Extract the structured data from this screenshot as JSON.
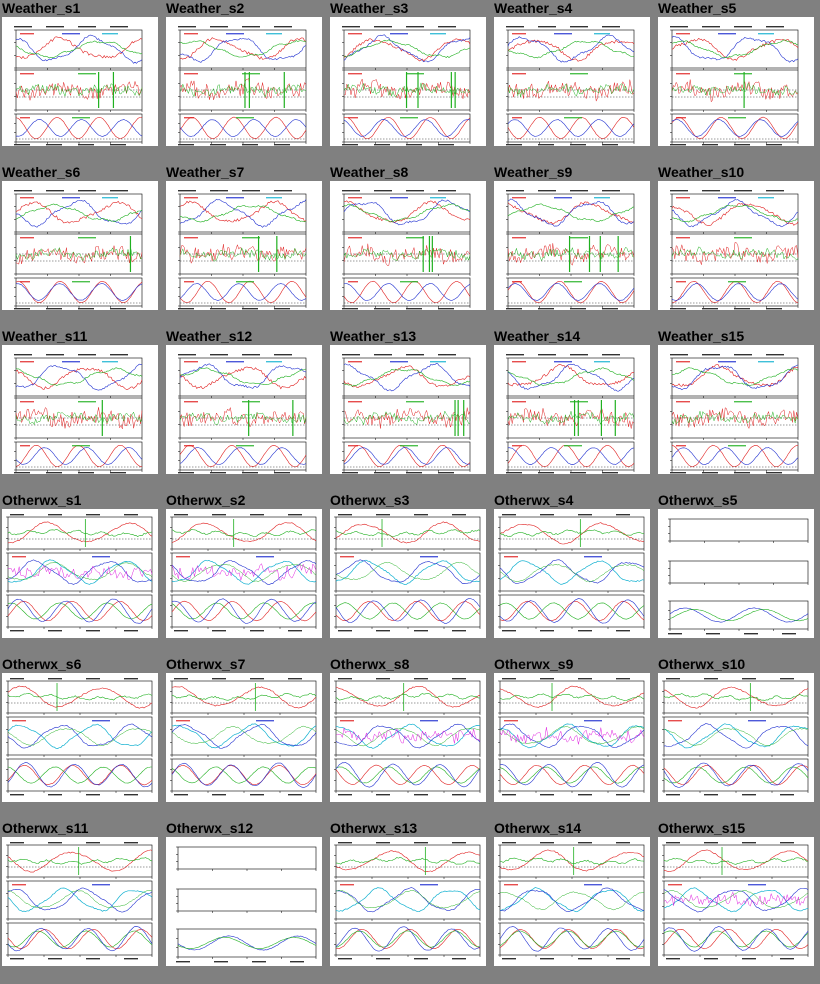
{
  "page": {
    "rows": [
      {
        "cells": [
          {
            "title": "Weather_s1",
            "kind": "weather"
          },
          {
            "title": "Weather_s2",
            "kind": "weather"
          },
          {
            "title": "Weather_s3",
            "kind": "weather"
          },
          {
            "title": "Weather_s4",
            "kind": "weather"
          },
          {
            "title": "Weather_s5",
            "kind": "weather"
          }
        ]
      },
      {
        "cells": [
          {
            "title": "Weather_s6",
            "kind": "weather"
          },
          {
            "title": "Weather_s7",
            "kind": "weather"
          },
          {
            "title": "Weather_s8",
            "kind": "weather"
          },
          {
            "title": "Weather_s9",
            "kind": "weather"
          },
          {
            "title": "Weather_s10",
            "kind": "weather"
          }
        ]
      },
      {
        "cells": [
          {
            "title": "Weather_s11",
            "kind": "weather"
          },
          {
            "title": "Weather_s12",
            "kind": "weather"
          },
          {
            "title": "Weather_s13",
            "kind": "weather"
          },
          {
            "title": "Weather_s14",
            "kind": "weather"
          },
          {
            "title": "Weather_s15",
            "kind": "weather"
          }
        ]
      },
      {
        "cells": [
          {
            "title": "Otherwx_s1",
            "kind": "otherwx"
          },
          {
            "title": "Otherwx_s2",
            "kind": "otherwx"
          },
          {
            "title": "Otherwx_s3",
            "kind": "otherwx"
          },
          {
            "title": "Otherwx_s4",
            "kind": "otherwx"
          },
          {
            "title": "Otherwx_s5",
            "kind": "otherwx-empty"
          }
        ]
      },
      {
        "cells": [
          {
            "title": "Otherwx_s6",
            "kind": "otherwx"
          },
          {
            "title": "Otherwx_s7",
            "kind": "otherwx"
          },
          {
            "title": "Otherwx_s8",
            "kind": "otherwx"
          },
          {
            "title": "Otherwx_s9",
            "kind": "otherwx"
          },
          {
            "title": "Otherwx_s10",
            "kind": "otherwx"
          }
        ]
      },
      {
        "cells": [
          {
            "title": "Otherwx_s11",
            "kind": "otherwx"
          },
          {
            "title": "Otherwx_s12",
            "kind": "otherwx-empty"
          },
          {
            "title": "Otherwx_s13",
            "kind": "otherwx"
          },
          {
            "title": "Otherwx_s14",
            "kind": "otherwx"
          },
          {
            "title": "Otherwx_s15",
            "kind": "otherwx"
          }
        ]
      }
    ]
  },
  "colors": {
    "page_background": "#808080",
    "panel_background": "#ffffff",
    "series_red": "#e02020",
    "series_green": "#20b020",
    "series_blue": "#2030d0",
    "series_cyan": "#10b0d0",
    "series_magenta": "#e020e0",
    "axis": "#000000"
  }
}
